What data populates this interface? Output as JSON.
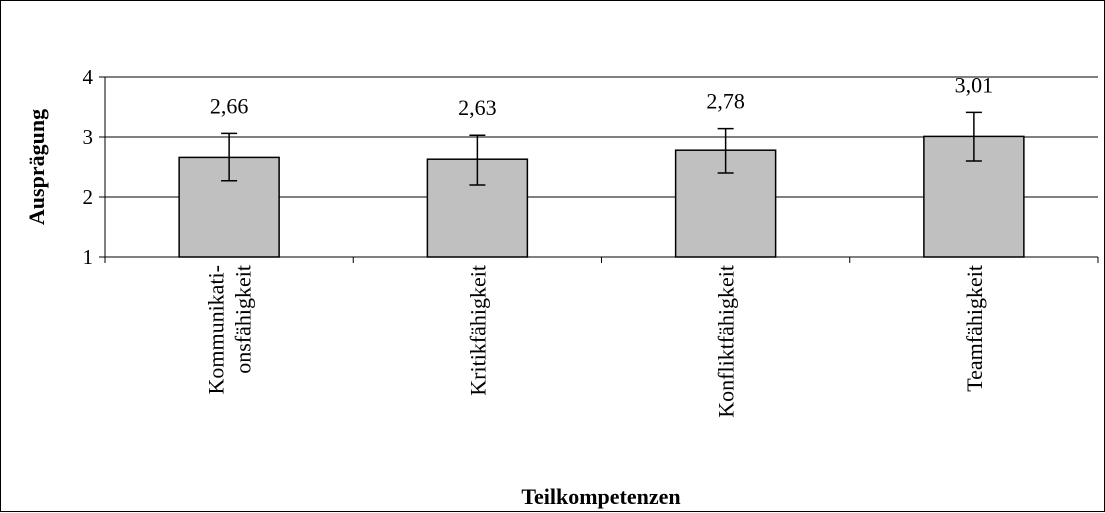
{
  "chart_data": {
    "type": "bar",
    "title": "",
    "xlabel": "Teilkompetenzen",
    "ylabel": "Ausprägung",
    "ylim": [
      1,
      4
    ],
    "yticks": [
      "1",
      "2",
      "3",
      "4"
    ],
    "grid": true,
    "categories": [
      [
        "Kommunikati-",
        "onsfähigkeit"
      ],
      [
        "Kritikfähigkeit"
      ],
      [
        "Konfliktfähigkeit"
      ],
      [
        "Teamfähigkeit"
      ]
    ],
    "series": [
      {
        "values": [
          2.66,
          2.63,
          2.78,
          3.01
        ],
        "labels": [
          "2,66",
          "2,63",
          "2,78",
          "3,01"
        ],
        "error_low": [
          2.27,
          2.2,
          2.4,
          2.6
        ],
        "error_high": [
          3.06,
          3.03,
          3.14,
          3.41
        ],
        "color": "#c0c0c0"
      }
    ],
    "legend": "none"
  }
}
